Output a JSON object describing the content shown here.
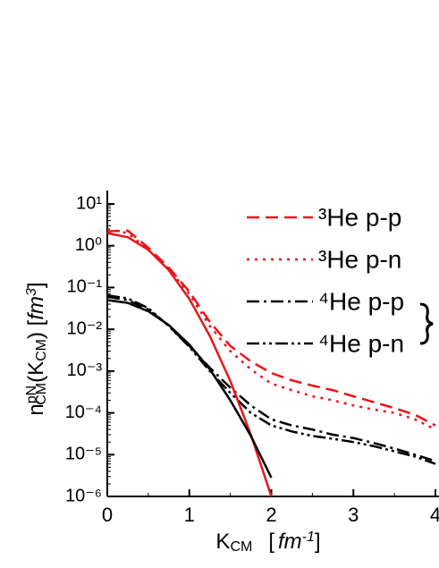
{
  "chart_data": {
    "type": "line",
    "log_y": true,
    "x": [
      0,
      0.25,
      0.5,
      0.75,
      1.0,
      1.25,
      1.5,
      1.75,
      2.0,
      2.25,
      2.5,
      2.75,
      3.0,
      3.25,
      3.5,
      3.75,
      4.0
    ],
    "xlim": [
      0,
      4
    ],
    "xticks": [
      0,
      1,
      2,
      3,
      4
    ],
    "ylim": [
      1e-06,
      10
    ],
    "yticks": [
      {
        "value": 10,
        "label": "10¹"
      },
      {
        "value": 1,
        "label": "10⁰"
      },
      {
        "value": 0.1,
        "label": "10⁻¹"
      },
      {
        "value": 0.01,
        "label": "10⁻²"
      },
      {
        "value": 0.001,
        "label": "10⁻³"
      },
      {
        "value": 0.0001,
        "label": "10⁻⁴"
      },
      {
        "value": 1e-05,
        "label": "10⁻⁵"
      },
      {
        "value": 1e-06,
        "label": "10⁻⁶"
      }
    ],
    "x_label": [
      "K",
      "CM",
      "[",
      "fm",
      "-1",
      "]"
    ],
    "y_label": [
      "n",
      "pN",
      "CM",
      "(K",
      "CM",
      ") [",
      "fm",
      "3",
      "]"
    ],
    "legend": "upper right",
    "series": [
      {
        "name": "³He p-p",
        "color": "#e8161b",
        "dash": "dashed",
        "values": [
          2.2,
          2.3,
          0.9,
          0.3,
          0.08,
          0.015,
          0.004,
          0.0017,
          0.0009,
          0.0006,
          0.00045,
          0.00035,
          0.00025,
          0.00018,
          0.00013,
          9e-05,
          5e-05
        ]
      },
      {
        "name": "³He p-n",
        "color": "#e8161b",
        "dash": "dotted",
        "values": [
          2.5,
          2.0,
          0.8,
          0.28,
          0.07,
          0.012,
          0.003,
          0.0011,
          0.0005,
          0.00035,
          0.00025,
          0.0002,
          0.00015,
          0.00012,
          0.0001,
          7e-05,
          4e-05
        ]
      },
      {
        "name": "⁴He p-p",
        "color": "#000000",
        "dash": "dashdot",
        "values": [
          0.06,
          0.05,
          0.03,
          0.012,
          0.004,
          0.0012,
          0.0004,
          0.00015,
          7e-05,
          5e-05,
          4e-05,
          3e-05,
          2.5e-05,
          1.9e-05,
          1.4e-05,
          1e-05,
          7e-06
        ]
      },
      {
        "name": "⁴He p-n",
        "color": "#000000",
        "dash": "dashdotdot",
        "values": [
          0.065,
          0.055,
          0.032,
          0.012,
          0.0038,
          0.001,
          0.0003,
          0.0001,
          5e-05,
          3.6e-05,
          2.8e-05,
          2.4e-05,
          2e-05,
          1.6e-05,
          1.2e-05,
          9e-06,
          6e-06
        ]
      },
      {
        "color": "#e8161b",
        "dash": "solid",
        "values": [
          2.0,
          1.6,
          0.8,
          0.26,
          0.053,
          0.0069,
          0.00058,
          3e-05,
          1e-06,
          null,
          null,
          null,
          null,
          null,
          null,
          null,
          null
        ]
      },
      {
        "color": "#000000",
        "dash": "solid",
        "values": [
          0.05,
          0.043,
          0.027,
          0.0126,
          0.0043,
          0.0011,
          0.0002,
          2.8e-05,
          2.8e-06,
          null,
          null,
          null,
          null,
          null,
          null,
          null,
          null
        ]
      }
    ]
  }
}
